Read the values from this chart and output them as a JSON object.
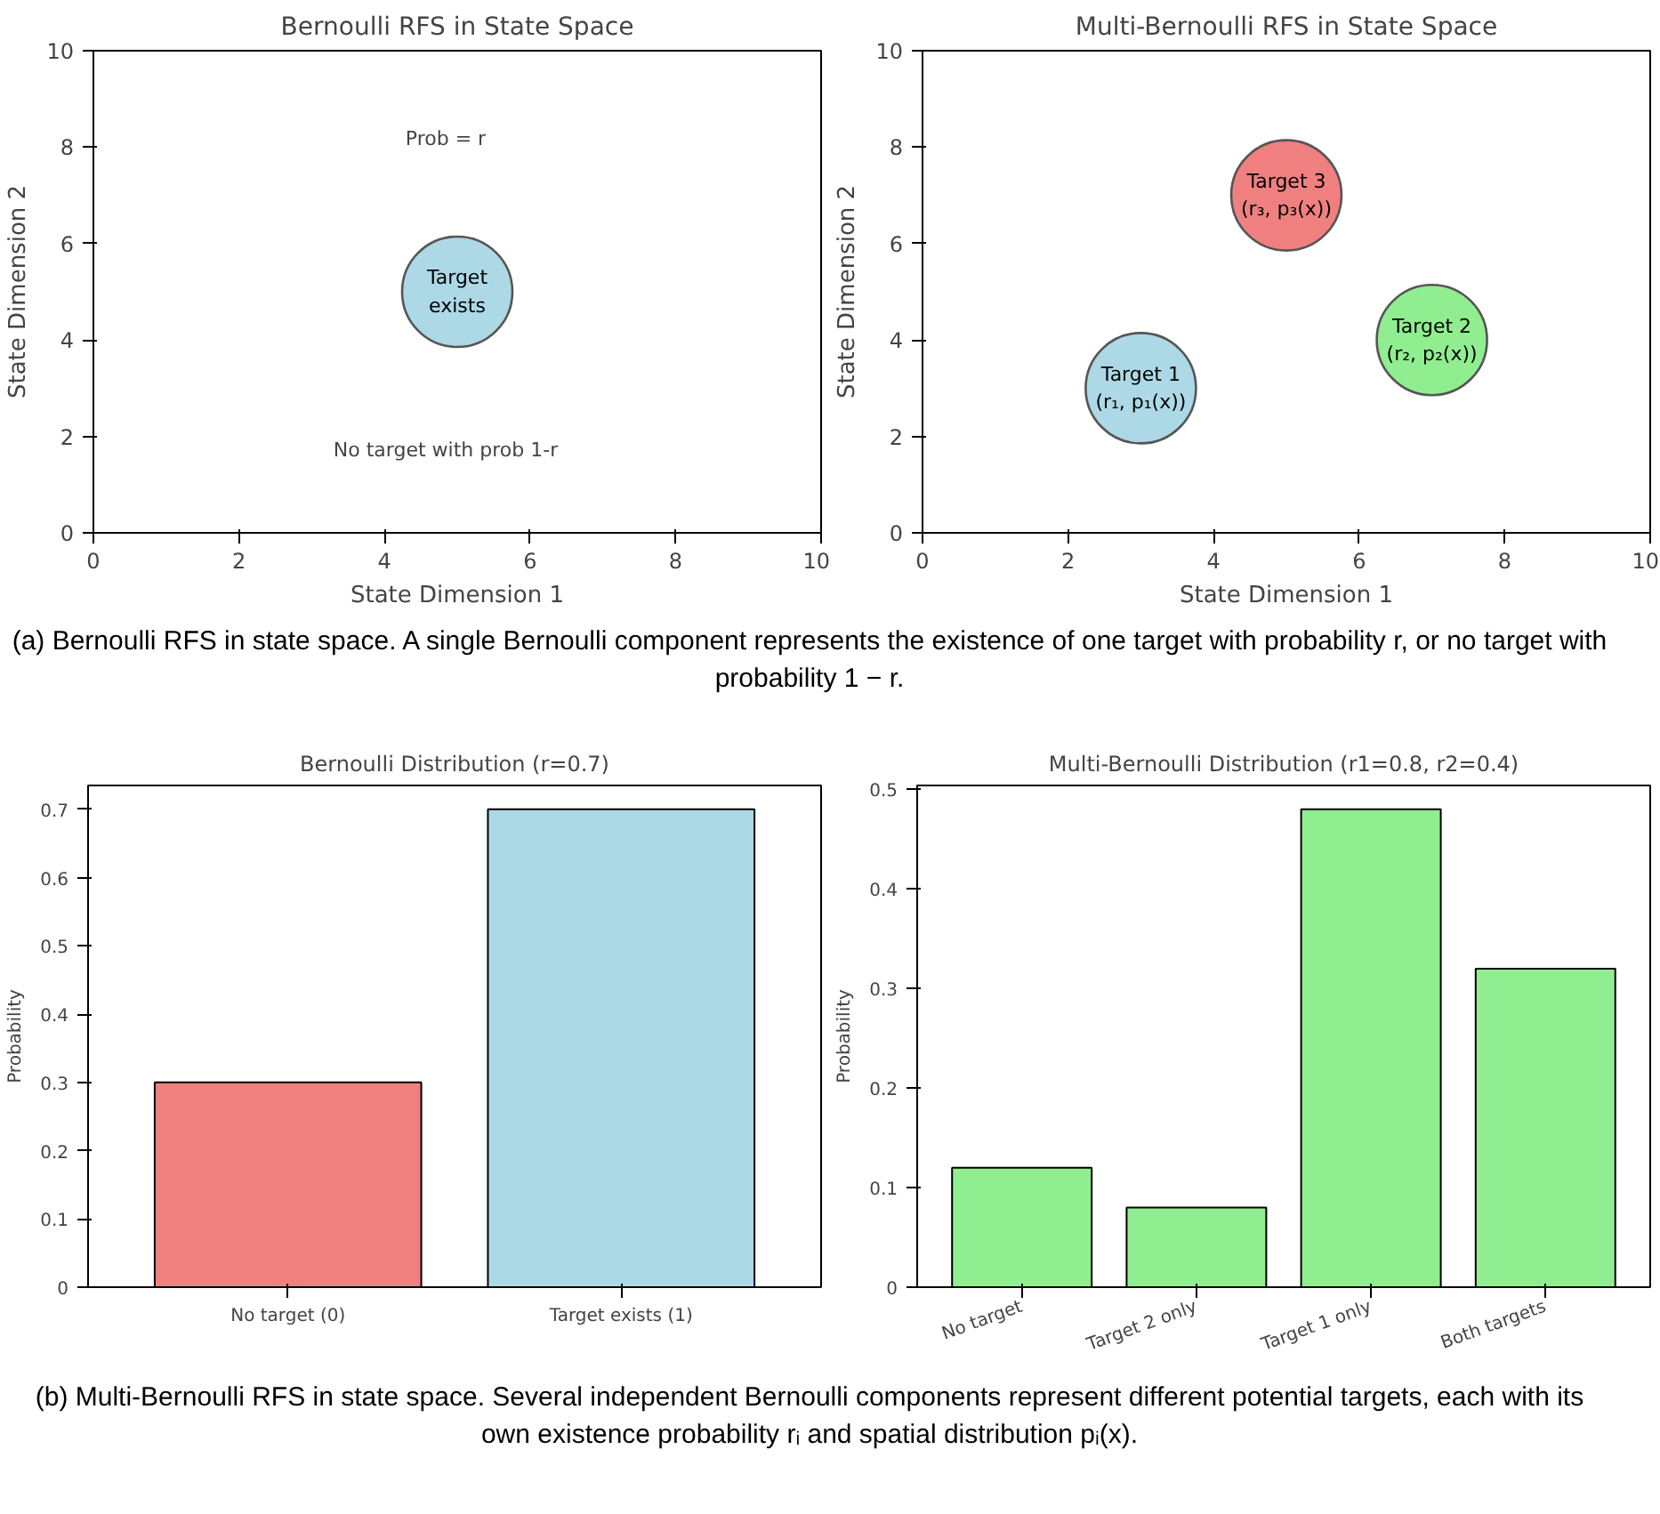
{
  "chart_data": [
    {
      "type": "scatter",
      "title": "Bernoulli RFS in State Space",
      "xlabel": "State Dimension 1",
      "ylabel": "State Dimension 2",
      "x": [
        5
      ],
      "values": [
        5
      ],
      "colors": [
        "#add8e6"
      ],
      "marker": "circle",
      "xlim": [
        0,
        10
      ],
      "ylim": [
        0,
        10
      ],
      "xticks": [
        0,
        2,
        4,
        6,
        8,
        10
      ],
      "yticks": [
        0,
        2,
        4,
        6,
        8,
        10
      ],
      "annotations": [
        {
          "text": "Target\nexists",
          "x": 5,
          "y": 5
        },
        "Prob = r",
        "No target with prob 1-r"
      ]
    },
    {
      "type": "scatter",
      "title": "Multi-Bernoulli RFS in State Space",
      "xlabel": "State Dimension 1",
      "ylabel": "State Dimension 2",
      "x": [
        3,
        7,
        5
      ],
      "values": [
        3,
        4,
        7
      ],
      "colors": [
        "#add8e6",
        "#90ee90",
        "#f08080"
      ],
      "marker": "circle",
      "xlim": [
        0,
        10
      ],
      "ylim": [
        0,
        10
      ],
      "xticks": [
        0,
        2,
        4,
        6,
        8,
        10
      ],
      "yticks": [
        0,
        2,
        4,
        6,
        8,
        10
      ],
      "annotations": [
        {
          "text": "Target 1\n(r₁, p₁(x))",
          "x": 3,
          "y": 3
        },
        {
          "text": "Target 2\n(r₂, p₂(x))",
          "x": 7,
          "y": 4
        },
        {
          "text": "Target 3\n(r₃, p₃(x))",
          "x": 5,
          "y": 7
        }
      ]
    },
    {
      "type": "other",
      "annotations": [
        "(a) Bernoulli RFS in state space. A single Bernoulli component represents the existence of one target with probability r, or no target with probability 1 − r."
      ]
    },
    {
      "type": "bar",
      "title": "Bernoulli Distribution (r=0.7)",
      "ylabel": "Probability",
      "categories": [
        "No target (0)",
        "Target exists (1)"
      ],
      "values": [
        0.3,
        0.7
      ],
      "colors": [
        "#f08080",
        "#add8e6"
      ],
      "ylim": [
        0,
        0.735
      ],
      "yticks": [
        0,
        0.1,
        0.2,
        0.3,
        0.4,
        0.5,
        0.6,
        0.7
      ]
    },
    {
      "type": "bar",
      "title": "Multi-Bernoulli Distribution (r1=0.8, r2=0.4)",
      "ylabel": "Probability",
      "categories": [
        "No target",
        "Target 2 only",
        "Target 1 only",
        "Both targets"
      ],
      "values": [
        0.12,
        0.08,
        0.48,
        0.32
      ],
      "colors": [
        "#90ee90",
        "#90ee90",
        "#90ee90",
        "#90ee90"
      ],
      "ylim": [
        0,
        0.504
      ],
      "yticks": [
        0,
        0.1,
        0.2,
        0.3,
        0.4,
        0.5
      ]
    },
    {
      "type": "other",
      "annotations": [
        "(b) Multi-Bernoulli RFS in state space. Several independent Bernoulli components represent different potential targets, each with its own existence probability rᵢ and spatial distribution pᵢ(x)."
      ]
    }
  ]
}
